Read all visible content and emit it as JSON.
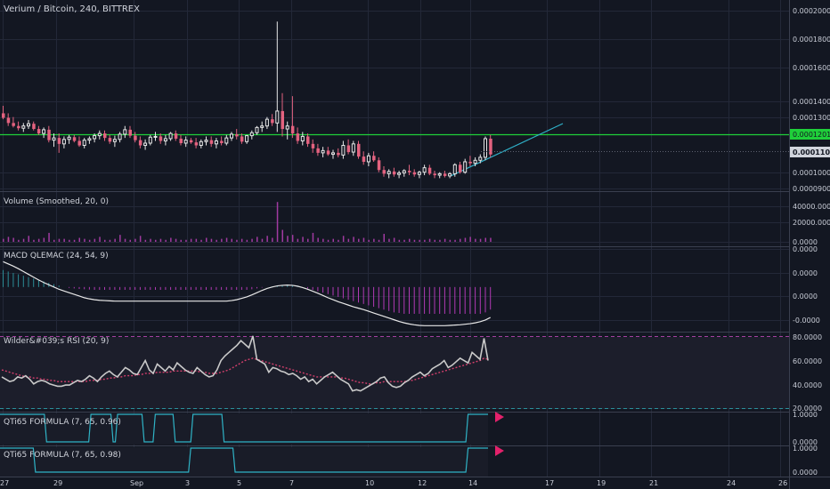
{
  "chart_title": "Verium / Bitcoin, 240, BITTREX",
  "colors": {
    "background": "#131722",
    "grid": "#232838",
    "separator": "#3a3f4f",
    "text": "#d1d4dc",
    "axis_text": "#c8ccd6",
    "bull": "#e8e8e8",
    "bear": "#e3627f",
    "hline": "#1fcf3a",
    "trendline": "#2fb0c8",
    "volume": "#a13aa1",
    "macd_hist_pos": "#2c8c96",
    "macd_hist_neg": "#b23ab5",
    "macd_line": "#e8e8e8",
    "rsi_line": "#c9c9c9",
    "rsi_signal": "#d23f6c",
    "rsi_upper": "#a340a0",
    "rsi_lower": "#2a8f9a",
    "qti": "#2fb3c6",
    "qti_marker": "#e3216b"
  },
  "price_axis": {
    "labels": [
      "0.00020000",
      "0.00018000",
      "0.00016000",
      "0.00014000",
      "0.00013000",
      "0.00012000",
      "0.00011091",
      "0.00010000",
      "0.00009000"
    ],
    "horizontal_line_label": "0.00012019",
    "current_price_label": "0.00011091"
  },
  "time_axis": {
    "labels": [
      "27",
      "29",
      "Sep",
      "3",
      "5",
      "7",
      "10",
      "12",
      "14",
      "17",
      "19",
      "21",
      "24",
      "26"
    ]
  },
  "panes": {
    "volume": {
      "title": "Volume (Smoothed, 20, 0)",
      "axis_labels": [
        "40000.0000",
        "20000.0000",
        "0.0000"
      ]
    },
    "macd": {
      "title": "MACD QLEMAC (24, 54, 9)",
      "axis_labels": [
        "0.0000",
        "0.0000",
        "0.0000",
        "-0.0000"
      ]
    },
    "rsi": {
      "title": "Wilder&#039;s RSI (20, 9)",
      "axis_labels": [
        "80.0000",
        "60.0000",
        "40.0000",
        "20.0000"
      ]
    },
    "qti1": {
      "title": "QTi65 FORMULA (7, 65, 0.96)",
      "axis_labels": [
        "1.0000",
        "0.0000"
      ]
    },
    "qti2": {
      "title": "QTi65 FORMULA (7, 65, 0.98)",
      "axis_labels": [
        "1.0000",
        "0.0000"
      ]
    }
  },
  "chart_data": {
    "type": "candlestick",
    "title": "Verium / Bitcoin, 240, BITTREX",
    "price_range": [
      8.75e-05,
      0.0002085
    ],
    "horizontal_line_price": 0.00012019,
    "last_price": 0.00011091,
    "candles": [
      [
        0.0001385,
        0.0001435,
        0.0001345,
        0.0001355
      ],
      [
        0.0001355,
        0.0001385,
        0.00013,
        0.000132
      ],
      [
        0.000132,
        0.000136,
        0.000129,
        0.00013
      ],
      [
        0.00013,
        0.000133,
        0.000127,
        0.0001285
      ],
      [
        0.0001285,
        0.000132,
        0.000126,
        0.00013
      ],
      [
        0.00013,
        0.000134,
        0.000128,
        0.0001315
      ],
      [
        0.0001315,
        0.000133,
        0.000127,
        0.000128
      ],
      [
        0.000128,
        0.00013,
        0.000124,
        0.000125
      ],
      [
        0.000125,
        0.000129,
        0.000122,
        0.0001275
      ],
      [
        0.0001275,
        0.00013,
        0.000119,
        0.0001205
      ],
      [
        0.0001205,
        0.000125,
        0.000116,
        0.000122
      ],
      [
        0.000122,
        0.000125,
        0.000112,
        0.000118
      ],
      [
        0.000118,
        0.000123,
        0.000115,
        0.000121
      ],
      [
        0.000121,
        0.000124,
        0.000118,
        0.0001225
      ],
      [
        0.0001225,
        0.000124,
        0.000119,
        0.00012
      ],
      [
        0.00012,
        0.000123,
        0.000116,
        0.000117
      ],
      [
        0.000117,
        0.000122,
        0.000115,
        0.0001205
      ],
      [
        0.0001205,
        0.000123,
        0.000118,
        0.0001215
      ],
      [
        0.0001215,
        0.000125,
        0.000119,
        0.0001235
      ],
      [
        0.0001235,
        0.000127,
        0.000121,
        0.000125
      ],
      [
        0.000125,
        0.000127,
        0.00012,
        0.000122
      ],
      [
        0.000122,
        0.000124,
        0.000118,
        0.0001195
      ],
      [
        0.0001195,
        0.0001235,
        0.000116,
        0.000121
      ],
      [
        0.000121,
        0.000126,
        0.000119,
        0.0001245
      ],
      [
        0.0001245,
        0.00013,
        0.000122,
        0.0001275
      ],
      [
        0.0001275,
        0.00013,
        0.000122,
        0.0001235
      ],
      [
        0.0001235,
        0.000126,
        0.000119,
        0.0001205
      ],
      [
        0.0001205,
        0.000123,
        0.000115,
        0.000117
      ],
      [
        0.000117,
        0.000121,
        0.000114,
        0.0001185
      ],
      [
        0.0001185,
        0.000124,
        0.000117,
        0.0001225
      ],
      [
        0.0001225,
        0.000126,
        0.00012,
        0.000123
      ],
      [
        0.000123,
        0.000125,
        0.000118,
        0.00012
      ],
      [
        0.00012,
        0.000124,
        0.000117,
        0.0001215
      ],
      [
        0.0001215,
        0.000126,
        0.00012,
        0.000125
      ],
      [
        0.000125,
        0.000127,
        0.00012,
        0.0001215
      ],
      [
        0.0001215,
        0.000124,
        0.000117,
        0.0001185
      ],
      [
        0.0001185,
        0.000123,
        0.000116,
        0.0001205
      ],
      [
        0.0001205,
        0.000122,
        0.000118,
        0.000119
      ],
      [
        0.000119,
        0.000122,
        0.000115,
        0.000117
      ],
      [
        0.000117,
        0.000121,
        0.000115,
        0.0001195
      ],
      [
        0.0001195,
        0.000123,
        0.000117,
        0.0001205
      ],
      [
        0.0001205,
        0.000123,
        0.000116,
        0.000118
      ],
      [
        0.000118,
        0.000122,
        0.000115,
        0.00012
      ],
      [
        0.00012,
        0.000123,
        0.000117,
        0.0001185
      ],
      [
        0.0001185,
        0.000124,
        0.000117,
        0.000122
      ],
      [
        0.000122,
        0.000126,
        0.00012,
        0.0001245
      ],
      [
        0.0001245,
        0.000128,
        0.000121,
        0.000123
      ],
      [
        0.000123,
        0.000125,
        0.000118,
        0.0001195
      ],
      [
        0.0001195,
        0.000124,
        0.000118,
        0.0001235
      ],
      [
        0.0001235,
        0.000127,
        0.000121,
        0.0001255
      ],
      [
        0.0001255,
        0.00013,
        0.000124,
        0.000129
      ],
      [
        0.000129,
        0.000133,
        0.000126,
        0.00013
      ],
      [
        0.00013,
        0.000136,
        0.000128,
        0.0001345
      ],
      [
        0.0001345,
        0.000138,
        0.00013,
        0.000132
      ],
      [
        0.000132,
        0.0002,
        0.000126,
        0.00014
      ],
      [
        0.00014,
        0.000152,
        0.000123,
        0.000128
      ],
      [
        0.000128,
        0.000133,
        0.000121,
        0.00013
      ],
      [
        0.00013,
        0.00015,
        0.000122,
        0.000125
      ],
      [
        0.000125,
        0.000129,
        0.000118,
        0.00012
      ],
      [
        0.00012,
        0.000126,
        0.000117,
        0.000123
      ],
      [
        0.000123,
        0.000125,
        0.000116,
        0.000118
      ],
      [
        0.000118,
        0.000121,
        0.000112,
        0.000115
      ],
      [
        0.000115,
        0.000118,
        0.00011,
        0.000112
      ],
      [
        0.000112,
        0.000116,
        0.000109,
        0.0001135
      ],
      [
        0.0001135,
        0.000116,
        0.00011,
        0.000111
      ],
      [
        0.000111,
        0.000114,
        0.000108,
        0.000112
      ],
      [
        0.000112,
        0.000115,
        0.000109,
        0.0001105
      ],
      [
        0.0001105,
        0.00012,
        0.000108,
        0.000117
      ],
      [
        0.000117,
        0.000121,
        0.000111,
        0.0001125
      ],
      [
        0.0001125,
        0.00012,
        0.00011,
        0.000118
      ],
      [
        0.000118,
        0.00012,
        0.000108,
        0.0001095
      ],
      [
        0.0001095,
        0.000113,
        0.000104,
        0.000106
      ],
      [
        0.000106,
        0.000112,
        0.000103,
        0.00011
      ],
      [
        0.00011,
        0.000113,
        0.000106,
        0.000107
      ],
      [
        0.000107,
        0.000109,
        9.9e-05,
        0.0001005
      ],
      [
        0.0001005,
        0.000103,
        9.6e-05,
        9.8e-05
      ],
      [
        9.8e-05,
        0.000101,
        9.5e-05,
        9.95e-05
      ],
      [
        9.95e-05,
        0.000102,
        9.6e-05,
        9.75e-05
      ],
      [
        9.75e-05,
        0.0001,
        9.5e-05,
        9.85e-05
      ],
      [
        9.85e-05,
        0.000101,
        9.6e-05,
        0.0001
      ],
      [
        0.0001,
        0.000104,
        9.7e-05,
        9.9e-05
      ],
      [
        9.9e-05,
        0.000101,
        9.6e-05,
        9.75e-05
      ],
      [
        9.75e-05,
        0.0001,
        9.5e-05,
        9.9e-05
      ],
      [
        9.9e-05,
        0.000104,
        9.7e-05,
        0.000102
      ],
      [
        0.000102,
        0.000104,
        9.7e-05,
        9.8e-05
      ],
      [
        9.8e-05,
        0.0001,
        9.5e-05,
        9.7e-05
      ],
      [
        9.7e-05,
        9.9e-05,
        9.5e-05,
        9.8e-05
      ],
      [
        9.8e-05,
        0.0001,
        9.55e-05,
        9.65e-05
      ],
      [
        9.65e-05,
        9.9e-05,
        9.5e-05,
        9.8e-05
      ],
      [
        9.8e-05,
        0.000105,
        9.6e-05,
        0.000104
      ],
      [
        0.000104,
        0.000106,
        9.8e-05,
        9.9e-05
      ],
      [
        9.9e-05,
        0.000108,
        9.8e-05,
        0.000106
      ],
      [
        0.000106,
        0.00011,
        0.000103,
        0.000105
      ],
      [
        0.000105,
        0.000109,
        0.000103,
        0.000107
      ],
      [
        0.000107,
        0.000111,
        0.000105,
        0.000109
      ],
      [
        0.000109,
        0.000123,
        0.000107,
        0.0001215
      ],
      [
        0.0001215,
        0.000124,
        0.000109,
        0.0001109
      ]
    ],
    "volume": [
      3,
      5,
      4,
      2,
      3,
      6,
      2,
      3,
      4,
      9,
      2,
      3,
      3,
      2,
      2,
      4,
      3,
      2,
      3,
      5,
      2,
      2,
      3,
      7,
      3,
      2,
      3,
      6,
      2,
      3,
      2,
      3,
      2,
      4,
      3,
      2,
      2,
      3,
      3,
      2,
      4,
      3,
      2,
      3,
      4,
      3,
      2,
      3,
      2,
      3,
      5,
      3,
      6,
      4,
      40,
      12,
      6,
      7,
      3,
      5,
      3,
      9,
      4,
      3,
      2,
      3,
      2,
      6,
      3,
      5,
      3,
      4,
      2,
      3,
      2,
      8,
      3,
      4,
      2,
      2,
      3,
      2,
      2,
      2,
      3,
      2,
      2,
      3,
      2,
      2,
      3,
      4,
      5,
      3,
      3,
      4,
      4
    ],
    "volume_range": [
      0,
      50000
    ],
    "macd_histogram": [
      0.6,
      0.55,
      0.5,
      0.45,
      0.4,
      0.35,
      0.3,
      0.25,
      0.2,
      0.15,
      0.1,
      0.05,
      0.0,
      -0.03,
      -0.05,
      -0.07,
      -0.08,
      -0.09,
      -0.1,
      -0.1,
      -0.1,
      -0.1,
      -0.1,
      -0.1,
      -0.1,
      -0.1,
      -0.1,
      -0.1,
      -0.1,
      -0.1,
      -0.1,
      -0.1,
      -0.1,
      -0.1,
      -0.1,
      -0.1,
      -0.1,
      -0.1,
      -0.1,
      -0.1,
      -0.1,
      -0.1,
      -0.1,
      -0.1,
      -0.1,
      -0.1,
      -0.1,
      -0.1,
      -0.1,
      -0.08,
      -0.05,
      -0.02,
      0.0,
      0.02,
      0.04,
      0.05,
      0.05,
      0.04,
      0.03,
      0.0,
      -0.05,
      -0.1,
      -0.15,
      -0.2,
      -0.25,
      -0.3,
      -0.35,
      -0.4,
      -0.45,
      -0.5,
      -0.55,
      -0.6,
      -0.65,
      -0.7,
      -0.75,
      -0.8,
      -0.85,
      -0.9,
      -0.92,
      -0.95,
      -0.95,
      -0.95,
      -0.95,
      -0.95,
      -0.95,
      -0.95,
      -0.95,
      -0.95,
      -0.95,
      -0.95,
      -0.95,
      -0.95,
      -0.95,
      -0.95,
      -0.95,
      -0.9,
      -0.8
    ],
    "macd_line": [
      0.9,
      0.82,
      0.74,
      0.65,
      0.55,
      0.45,
      0.35,
      0.25,
      0.16,
      0.08,
      0.0,
      -0.08,
      -0.14,
      -0.2,
      -0.26,
      -0.32,
      -0.38,
      -0.42,
      -0.45,
      -0.47,
      -0.48,
      -0.49,
      -0.5,
      -0.5,
      -0.5,
      -0.5,
      -0.5,
      -0.5,
      -0.5,
      -0.5,
      -0.5,
      -0.5,
      -0.5,
      -0.5,
      -0.5,
      -0.5,
      -0.5,
      -0.5,
      -0.5,
      -0.5,
      -0.5,
      -0.5,
      -0.5,
      -0.5,
      -0.5,
      -0.48,
      -0.45,
      -0.4,
      -0.35,
      -0.28,
      -0.2,
      -0.12,
      -0.05,
      0.0,
      0.04,
      0.06,
      0.07,
      0.06,
      0.03,
      -0.02,
      -0.08,
      -0.15,
      -0.22,
      -0.3,
      -0.38,
      -0.45,
      -0.52,
      -0.58,
      -0.64,
      -0.7,
      -0.75,
      -0.8,
      -0.86,
      -0.92,
      -0.98,
      -1.04,
      -1.1,
      -1.16,
      -1.22,
      -1.27,
      -1.31,
      -1.34,
      -1.36,
      -1.37,
      -1.37,
      -1.37,
      -1.37,
      -1.37,
      -1.36,
      -1.35,
      -1.34,
      -1.32,
      -1.3,
      -1.27,
      -1.23,
      -1.17,
      -1.08
    ],
    "macd_range": [
      -1.55,
      1.35
    ],
    "rsi": [
      44,
      42,
      40,
      41,
      44,
      43,
      45,
      42,
      38,
      40,
      41,
      40,
      38,
      37,
      36,
      36,
      37,
      37,
      39,
      41,
      40,
      42,
      45,
      43,
      40,
      44,
      47,
      49,
      46,
      44,
      48,
      52,
      50,
      47,
      46,
      52,
      58,
      50,
      47,
      55,
      52,
      49,
      53,
      50,
      56,
      53,
      50,
      48,
      47,
      52,
      49,
      46,
      44,
      45,
      50,
      58,
      62,
      65,
      68,
      71,
      75,
      72,
      69,
      79,
      59,
      57,
      55,
      48,
      52,
      51,
      49,
      48,
      46,
      47,
      45,
      42,
      44,
      40,
      42,
      38,
      41,
      44,
      46,
      48,
      45,
      42,
      40,
      38,
      32,
      33,
      32,
      34,
      36,
      38,
      40,
      43,
      44,
      39,
      36,
      35,
      36,
      39,
      41,
      44,
      46,
      48,
      45,
      47,
      51,
      53,
      55,
      58,
      52,
      54,
      57,
      60,
      58,
      56,
      65,
      62,
      59,
      77,
      58
    ],
    "rsi_signal": [
      50,
      49,
      48,
      47,
      46,
      45,
      44,
      44,
      43,
      43,
      42,
      42,
      41,
      41,
      40,
      40,
      40,
      40,
      40,
      40,
      40,
      40,
      41,
      41,
      41,
      42,
      42,
      43,
      43,
      44,
      44,
      45,
      45,
      45,
      46,
      46,
      47,
      47,
      47,
      48,
      48,
      48,
      48,
      49,
      49,
      49,
      49,
      49,
      49,
      49,
      48,
      48,
      47,
      47,
      47,
      48,
      49,
      50,
      52,
      54,
      56,
      58,
      59,
      60,
      59,
      58,
      57,
      56,
      55,
      54,
      53,
      52,
      51,
      50,
      49,
      48,
      47,
      46,
      45,
      44,
      44,
      44,
      44,
      44,
      44,
      43,
      43,
      42,
      41,
      40,
      39,
      39,
      38,
      38,
      39,
      39,
      40,
      40,
      40,
      40,
      40,
      40,
      41,
      41,
      42,
      43,
      44,
      45,
      46,
      47,
      48,
      49,
      50,
      51,
      52,
      53,
      54,
      55,
      56,
      57,
      58,
      60,
      59
    ],
    "rsi_range": [
      15,
      82
    ],
    "rsi_levels": [
      80,
      20
    ],
    "qti1_steps": [
      [
        0,
        1
      ],
      [
        0.2,
        1
      ],
      [
        0.21,
        0
      ],
      [
        0.4,
        0
      ],
      [
        0.41,
        1
      ],
      [
        0.5,
        1
      ],
      [
        0.51,
        0
      ],
      [
        0.52,
        0
      ],
      [
        0.53,
        1
      ],
      [
        0.64,
        1
      ],
      [
        0.65,
        0
      ],
      [
        0.69,
        0
      ],
      [
        0.7,
        1
      ],
      [
        0.78,
        1
      ],
      [
        0.79,
        0
      ],
      [
        0.86,
        0
      ],
      [
        0.87,
        1
      ],
      [
        1.0,
        1
      ],
      [
        1.01,
        0
      ],
      [
        2.1,
        0
      ],
      [
        2.11,
        1
      ],
      [
        2.2,
        1
      ]
    ],
    "qti2_steps": [
      [
        0,
        1
      ],
      [
        0.15,
        1
      ],
      [
        0.16,
        0
      ],
      [
        0.85,
        0
      ],
      [
        0.86,
        1
      ],
      [
        1.05,
        1
      ],
      [
        1.06,
        0
      ],
      [
        2.1,
        0
      ],
      [
        2.11,
        1
      ],
      [
        2.2,
        1
      ]
    ]
  }
}
